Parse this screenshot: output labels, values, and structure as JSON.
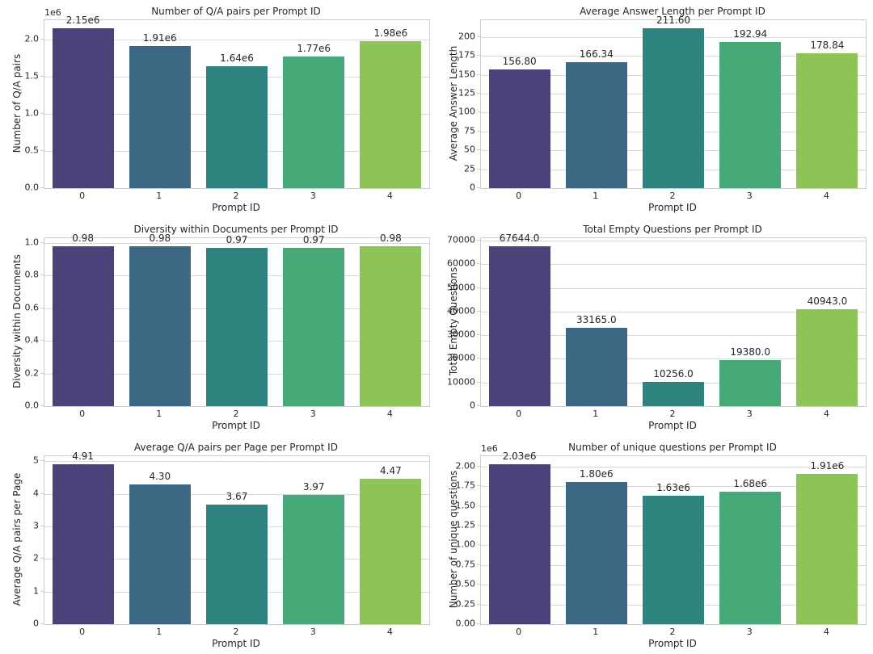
{
  "figure": {
    "background": "#ffffff",
    "text_color": "#262626",
    "grid_color": "#d9d9d9",
    "spine_color": "#cccccc",
    "palette": [
      "#4b4279",
      "#3d6883",
      "#2f837f",
      "#47a878",
      "#8dc458"
    ]
  },
  "chart_data": [
    {
      "type": "bar",
      "title": "Number of Q/A pairs per Prompt ID",
      "xlabel": "Prompt ID",
      "ylabel": "Number of Q/A pairs",
      "offset_text": "1e6",
      "categories": [
        "0",
        "1",
        "2",
        "3",
        "4"
      ],
      "values": [
        2150000,
        1910000,
        1640000,
        1770000,
        1980000
      ],
      "bar_labels": [
        "2.15e6",
        "1.91e6",
        "1.64e6",
        "1.77e6",
        "1.98e6"
      ],
      "ytick_values": [
        0,
        500000,
        1000000,
        1500000,
        2000000
      ],
      "ytick_labels": [
        "0.0",
        "0.5",
        "1.0",
        "1.5",
        "2.0"
      ],
      "ylim": [
        0,
        2257500
      ],
      "grid": true,
      "legend": null
    },
    {
      "type": "bar",
      "title": "Average Answer Length per Prompt ID",
      "xlabel": "Prompt ID",
      "ylabel": "Average Answer Length",
      "offset_text": null,
      "categories": [
        "0",
        "1",
        "2",
        "3",
        "4"
      ],
      "values": [
        156.8,
        166.34,
        211.6,
        192.94,
        178.84
      ],
      "bar_labels": [
        "156.80",
        "166.34",
        "211.60",
        "192.94",
        "178.84"
      ],
      "ytick_values": [
        0,
        25,
        50,
        75,
        100,
        125,
        150,
        175,
        200
      ],
      "ytick_labels": [
        "0",
        "25",
        "50",
        "75",
        "100",
        "125",
        "150",
        "175",
        "200"
      ],
      "ylim": [
        0,
        222.18
      ],
      "grid": true,
      "legend": null
    },
    {
      "type": "bar",
      "title": "Diversity within Documents per Prompt ID",
      "xlabel": "Prompt ID",
      "ylabel": "Diversity within Documents",
      "offset_text": null,
      "categories": [
        "0",
        "1",
        "2",
        "3",
        "4"
      ],
      "values": [
        0.98,
        0.98,
        0.97,
        0.97,
        0.98
      ],
      "bar_labels": [
        "0.98",
        "0.98",
        "0.97",
        "0.97",
        "0.98"
      ],
      "ytick_values": [
        0,
        0.2,
        0.4,
        0.6,
        0.8,
        1.0
      ],
      "ytick_labels": [
        "0.0",
        "0.2",
        "0.4",
        "0.6",
        "0.8",
        "1.0"
      ],
      "ylim": [
        0,
        1.029
      ],
      "grid": true,
      "legend": null
    },
    {
      "type": "bar",
      "title": "Total Empty Questions per Prompt ID",
      "xlabel": "Prompt ID",
      "ylabel": "Total Empty Questions",
      "offset_text": null,
      "categories": [
        "0",
        "1",
        "2",
        "3",
        "4"
      ],
      "values": [
        67644,
        33165,
        10256,
        19380,
        40943
      ],
      "bar_labels": [
        "67644.0",
        "33165.0",
        "10256.0",
        "19380.0",
        "40943.0"
      ],
      "ytick_values": [
        0,
        10000,
        20000,
        30000,
        40000,
        50000,
        60000,
        70000
      ],
      "ytick_labels": [
        "0",
        "10000",
        "20000",
        "30000",
        "40000",
        "50000",
        "60000",
        "70000"
      ],
      "ylim": [
        0,
        71026
      ],
      "grid": true,
      "legend": null
    },
    {
      "type": "bar",
      "title": "Average Q/A pairs per Page per Prompt ID",
      "xlabel": "Prompt ID",
      "ylabel": "Average Q/A pairs per Page",
      "offset_text": null,
      "categories": [
        "0",
        "1",
        "2",
        "3",
        "4"
      ],
      "values": [
        4.91,
        4.3,
        3.67,
        3.97,
        4.47
      ],
      "bar_labels": [
        "4.91",
        "4.30",
        "3.67",
        "3.97",
        "4.47"
      ],
      "ytick_values": [
        0,
        1,
        2,
        3,
        4,
        5
      ],
      "ytick_labels": [
        "0",
        "1",
        "2",
        "3",
        "4",
        "5"
      ],
      "ylim": [
        0,
        5.1555
      ],
      "grid": true,
      "legend": null
    },
    {
      "type": "bar",
      "title": "Number of unique questions per Prompt ID",
      "xlabel": "Prompt ID",
      "ylabel": "Number of unique questions",
      "offset_text": "1e6",
      "categories": [
        "0",
        "1",
        "2",
        "3",
        "4"
      ],
      "values": [
        2030000,
        1800000,
        1630000,
        1680000,
        1910000
      ],
      "bar_labels": [
        "2.03e6",
        "1.80e6",
        "1.63e6",
        "1.68e6",
        "1.91e6"
      ],
      "ytick_values": [
        0,
        250000,
        500000,
        750000,
        1000000,
        1250000,
        1500000,
        1750000,
        2000000
      ],
      "ytick_labels": [
        "0.00",
        "0.25",
        "0.50",
        "0.75",
        "1.00",
        "1.25",
        "1.50",
        "1.75",
        "2.00"
      ],
      "ylim": [
        0,
        2131500
      ],
      "grid": true,
      "legend": null
    }
  ]
}
